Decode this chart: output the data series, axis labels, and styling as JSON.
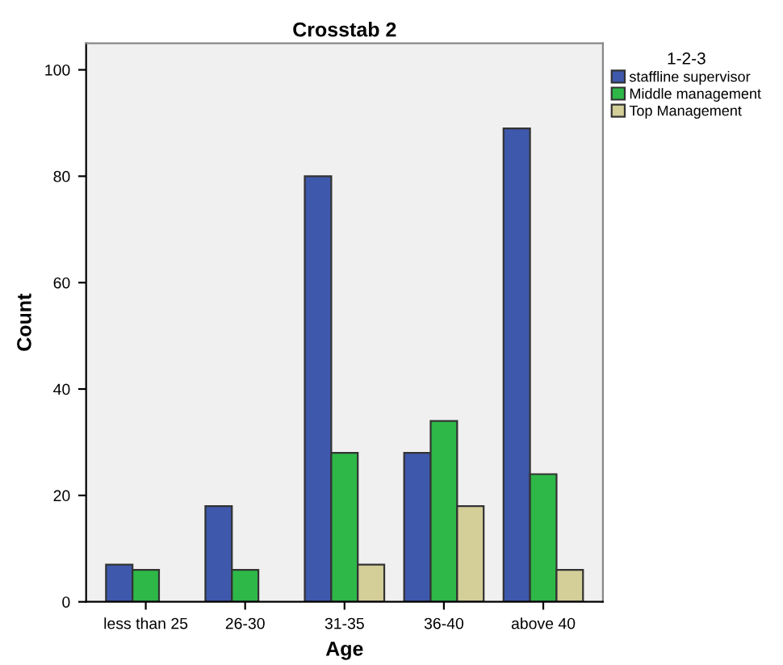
{
  "chart_data": {
    "type": "bar",
    "title": "Crosstab 2",
    "xlabel": "Age",
    "ylabel": "Count",
    "legend_title": "1-2-3",
    "categories": [
      "less than 25",
      "26-30",
      "31-35",
      "36-40",
      "above 40"
    ],
    "series": [
      {
        "name": "staffline supervisor",
        "color": "#3e58ac",
        "values": [
          7,
          18,
          80,
          28,
          89
        ]
      },
      {
        "name": "Middle management",
        "color": "#2eb848",
        "values": [
          6,
          6,
          28,
          34,
          24
        ]
      },
      {
        "name": "Top Management",
        "color": "#d4cf98",
        "values": [
          null,
          null,
          7,
          18,
          6
        ]
      }
    ],
    "ylim": [
      0,
      105
    ],
    "yticks": [
      0,
      20,
      40,
      60,
      80,
      100
    ],
    "grid": false,
    "legend": "top right"
  }
}
